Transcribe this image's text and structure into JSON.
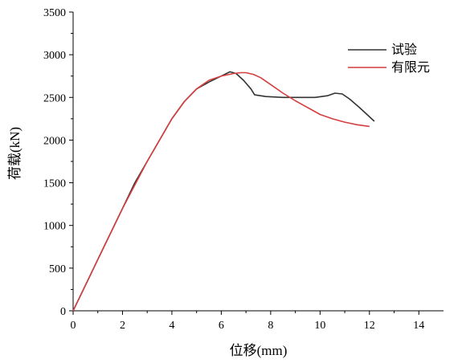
{
  "chart_data": {
    "type": "line",
    "title": "",
    "xlabel": "位移(mm)",
    "ylabel": "荷载(kN)",
    "xlim": [
      0,
      15
    ],
    "ylim": [
      0,
      3500
    ],
    "xticks": [
      0,
      2,
      4,
      6,
      8,
      10,
      12,
      14
    ],
    "yticks": [
      0,
      500,
      1000,
      1500,
      2000,
      2500,
      3000,
      3500
    ],
    "grid": false,
    "legend_position": "top-right",
    "series": [
      {
        "name": "试验",
        "color": "#333333",
        "x": [
          0,
          0.5,
          1.0,
          1.5,
          2.0,
          2.5,
          3.0,
          3.5,
          4.0,
          4.5,
          5.0,
          5.5,
          6.0,
          6.35,
          6.6,
          6.9,
          7.2,
          7.35,
          7.8,
          8.5,
          9.2,
          9.8,
          10.3,
          10.6,
          10.9,
          11.2,
          11.6,
          11.9,
          12.2
        ],
        "y": [
          0,
          300,
          600,
          900,
          1200,
          1500,
          1750,
          2000,
          2250,
          2450,
          2600,
          2680,
          2750,
          2800,
          2780,
          2700,
          2600,
          2530,
          2510,
          2500,
          2500,
          2500,
          2520,
          2550,
          2540,
          2480,
          2380,
          2300,
          2220
        ]
      },
      {
        "name": "有限元",
        "color": "#d43f3f",
        "x": [
          0,
          1.0,
          2.0,
          3.0,
          4.0,
          4.5,
          5.0,
          5.5,
          6.0,
          6.5,
          6.8,
          7.0,
          7.3,
          7.6,
          8.0,
          8.5,
          9.0,
          9.5,
          10.0,
          10.5,
          11.0,
          11.5,
          12.0
        ],
        "y": [
          0,
          600,
          1200,
          1750,
          2250,
          2450,
          2600,
          2700,
          2750,
          2780,
          2790,
          2790,
          2770,
          2730,
          2650,
          2550,
          2460,
          2380,
          2300,
          2250,
          2210,
          2180,
          2160
        ]
      }
    ]
  }
}
